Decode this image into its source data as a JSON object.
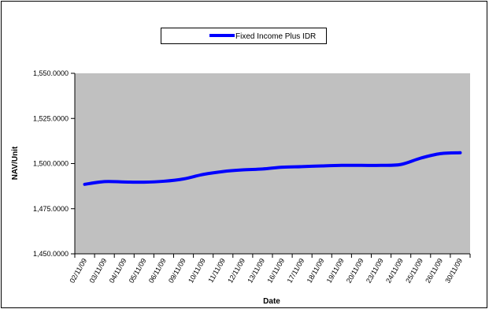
{
  "chart_data": {
    "type": "line",
    "title": "",
    "xlabel": "Date",
    "ylabel": "NAV/Unit",
    "categories": [
      "02/11/09",
      "03/11/09",
      "04/11/09",
      "05/11/09",
      "06/11/09",
      "09/11/09",
      "10/11/09",
      "11/11/09",
      "12/11/09",
      "13/11/09",
      "16/11/09",
      "17/11/09",
      "18/11/09",
      "19/11/09",
      "20/11/09",
      "23/11/09",
      "24/11/09",
      "25/11/09",
      "26/11/09",
      "30/11/09"
    ],
    "series": [
      {
        "name": "Fixed Income Plus IDR",
        "color": "#0000ff",
        "values": [
          1488.5,
          1490.0,
          1489.8,
          1489.7,
          1490.2,
          1491.5,
          1494.0,
          1495.6,
          1496.5,
          1497.0,
          1498.0,
          1498.3,
          1498.7,
          1499.0,
          1499.0,
          1499.0,
          1499.5,
          1503.0,
          1505.5,
          1506.0
        ]
      }
    ],
    "ylim": [
      1450,
      1550
    ],
    "yticks": [
      1450,
      1475,
      1500,
      1525,
      1550
    ],
    "ytick_labels": [
      "1,450.0000",
      "1,475.0000",
      "1,500.0000",
      "1,525.0000",
      "1,550.0000"
    ],
    "grid": false,
    "legend_position": "top",
    "plot_background": "#c0c0c0"
  }
}
